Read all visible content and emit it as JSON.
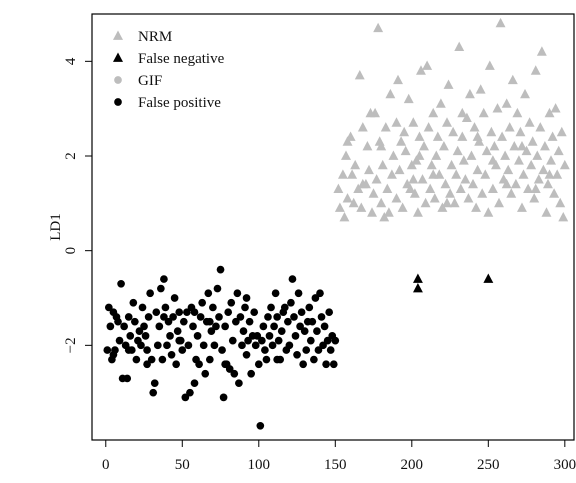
{
  "chart_data": {
    "type": "scatter",
    "xlabel": "",
    "ylabel": "LD1",
    "xlim": [
      -9,
      306
    ],
    "ylim": [
      -4.0,
      5.0
    ],
    "x_ticks": [
      0,
      50,
      100,
      150,
      200,
      250,
      300
    ],
    "x_tick_labels": [
      "0",
      "50",
      "100",
      "150",
      "200",
      "250",
      "300"
    ],
    "y_ticks": [
      4,
      2,
      0,
      -2
    ],
    "y_tick_labels": [
      "4",
      "2",
      "0",
      "−2"
    ],
    "legend_position": "top-left",
    "grid": false,
    "series": [
      {
        "name": "NRM",
        "marker": "triangle",
        "color": "#bdbdbd",
        "points": [
          [
            152,
            1.3
          ],
          [
            153,
            0.9
          ],
          [
            155,
            1.6
          ],
          [
            156,
            0.7
          ],
          [
            157,
            2.0
          ],
          [
            158,
            1.1
          ],
          [
            160,
            2.4
          ],
          [
            161,
            1.6
          ],
          [
            163,
            1.8
          ],
          [
            165,
            1.3
          ],
          [
            166,
            3.7
          ],
          [
            167,
            0.9
          ],
          [
            168,
            2.6
          ],
          [
            170,
            1.4
          ],
          [
            171,
            2.2
          ],
          [
            172,
            1.7
          ],
          [
            174,
            0.8
          ],
          [
            175,
            1.2
          ],
          [
            176,
            2.9
          ],
          [
            177,
            1.5
          ],
          [
            178,
            4.7
          ],
          [
            179,
            2.3
          ],
          [
            180,
            1.0
          ],
          [
            181,
            1.8
          ],
          [
            182,
            0.7
          ],
          [
            183,
            2.6
          ],
          [
            184,
            1.3
          ],
          [
            186,
            3.3
          ],
          [
            187,
            1.6
          ],
          [
            188,
            2.0
          ],
          [
            190,
            1.1
          ],
          [
            191,
            3.6
          ],
          [
            192,
            1.7
          ],
          [
            193,
            2.3
          ],
          [
            194,
            0.9
          ],
          [
            196,
            2.1
          ],
          [
            197,
            1.4
          ],
          [
            198,
            3.2
          ],
          [
            200,
            1.8
          ],
          [
            201,
            2.7
          ],
          [
            202,
            1.2
          ],
          [
            203,
            1.9
          ],
          [
            204,
            0.8
          ],
          [
            205,
            2.4
          ],
          [
            206,
            3.8
          ],
          [
            207,
            1.5
          ],
          [
            208,
            2.2
          ],
          [
            209,
            1.0
          ],
          [
            210,
            3.9
          ],
          [
            211,
            2.6
          ],
          [
            212,
            1.3
          ],
          [
            213,
            1.8
          ],
          [
            214,
            2.9
          ],
          [
            215,
            1.1
          ],
          [
            216,
            2.0
          ],
          [
            217,
            2.4
          ],
          [
            218,
            1.6
          ],
          [
            219,
            3.1
          ],
          [
            220,
            0.9
          ],
          [
            221,
            2.2
          ],
          [
            222,
            1.4
          ],
          [
            223,
            2.7
          ],
          [
            224,
            3.5
          ],
          [
            225,
            1.2
          ],
          [
            226,
            1.8
          ],
          [
            227,
            2.5
          ],
          [
            228,
            1.0
          ],
          [
            229,
            1.6
          ],
          [
            230,
            2.1
          ],
          [
            231,
            4.3
          ],
          [
            232,
            1.3
          ],
          [
            233,
            2.4
          ],
          [
            234,
            1.9
          ],
          [
            235,
            1.5
          ],
          [
            236,
            2.8
          ],
          [
            237,
            1.1
          ],
          [
            238,
            3.3
          ],
          [
            239,
            2.0
          ],
          [
            240,
            1.4
          ],
          [
            241,
            2.6
          ],
          [
            242,
            0.9
          ],
          [
            243,
            1.7
          ],
          [
            244,
            2.3
          ],
          [
            245,
            3.4
          ],
          [
            246,
            1.2
          ],
          [
            247,
            2.9
          ],
          [
            248,
            1.6
          ],
          [
            249,
            2.1
          ],
          [
            250,
            0.8
          ],
          [
            251,
            3.9
          ],
          [
            252,
            2.5
          ],
          [
            253,
            1.3
          ],
          [
            254,
            2.2
          ],
          [
            255,
            1.8
          ],
          [
            256,
            3.0
          ],
          [
            257,
            1.0
          ],
          [
            258,
            4.8
          ],
          [
            259,
            2.4
          ],
          [
            260,
            1.5
          ],
          [
            261,
            2.0
          ],
          [
            262,
            3.1
          ],
          [
            263,
            1.7
          ],
          [
            264,
            2.6
          ],
          [
            265,
            1.2
          ],
          [
            266,
            3.6
          ],
          [
            267,
            2.2
          ],
          [
            268,
            1.4
          ],
          [
            269,
            2.9
          ],
          [
            270,
            1.9
          ],
          [
            271,
            2.5
          ],
          [
            272,
            0.9
          ],
          [
            273,
            1.6
          ],
          [
            274,
            3.3
          ],
          [
            275,
            2.1
          ],
          [
            276,
            1.3
          ],
          [
            277,
            2.7
          ],
          [
            278,
            1.8
          ],
          [
            279,
            2.3
          ],
          [
            280,
            1.1
          ],
          [
            281,
            3.8
          ],
          [
            282,
            2.0
          ],
          [
            283,
            1.5
          ],
          [
            284,
            2.6
          ],
          [
            285,
            4.2
          ],
          [
            286,
            1.7
          ],
          [
            287,
            2.2
          ],
          [
            288,
            0.8
          ],
          [
            289,
            1.4
          ],
          [
            290,
            2.9
          ],
          [
            291,
            1.9
          ],
          [
            292,
            2.4
          ],
          [
            293,
            1.2
          ],
          [
            294,
            3.0
          ],
          [
            295,
            1.6
          ],
          [
            296,
            2.1
          ],
          [
            297,
            1.0
          ],
          [
            298,
            2.5
          ],
          [
            299,
            0.7
          ],
          [
            300,
            1.8
          ],
          [
            162,
            1.0
          ],
          [
            173,
            2.9
          ],
          [
            185,
            0.8
          ],
          [
            195,
            2.5
          ],
          [
            199,
            1.3
          ],
          [
            205,
            2.0
          ],
          [
            214,
            1.6
          ],
          [
            223,
            1.0
          ],
          [
            233,
            2.9
          ],
          [
            243,
            2.4
          ],
          [
            253,
            1.9
          ],
          [
            262,
            1.4
          ],
          [
            272,
            2.2
          ],
          [
            281,
            1.3
          ],
          [
            290,
            1.6
          ],
          [
            158,
            2.3
          ],
          [
            168,
            1.4
          ],
          [
            180,
            2.2
          ],
          [
            190,
            2.7
          ],
          [
            201,
            1.5
          ]
        ]
      },
      {
        "name": "False negative",
        "marker": "triangle",
        "color": "#000000",
        "points": [
          [
            204,
            -0.6
          ],
          [
            204,
            -0.8
          ],
          [
            250,
            -0.6
          ]
        ]
      },
      {
        "name": "GIF",
        "marker": "circle",
        "color": "#bdbdbd",
        "points": []
      },
      {
        "name": "False positive",
        "marker": "circle",
        "color": "#000000",
        "points": [
          [
            1,
            -2.1
          ],
          [
            2,
            -1.2
          ],
          [
            3,
            -1.6
          ],
          [
            4,
            -2.3
          ],
          [
            5,
            -1.3
          ],
          [
            6,
            -2.1
          ],
          [
            7,
            -1.4
          ],
          [
            8,
            -1.5
          ],
          [
            9,
            -1.9
          ],
          [
            10,
            -0.7
          ],
          [
            11,
            -2.7
          ],
          [
            12,
            -1.6
          ],
          [
            13,
            -2.0
          ],
          [
            14,
            -2.7
          ],
          [
            15,
            -1.4
          ],
          [
            16,
            -1.8
          ],
          [
            17,
            -2.1
          ],
          [
            18,
            -1.1
          ],
          [
            19,
            -1.5
          ],
          [
            20,
            -2.3
          ],
          [
            21,
            -1.9
          ],
          [
            22,
            -1.7
          ],
          [
            23,
            -2.0
          ],
          [
            24,
            -1.2
          ],
          [
            25,
            -1.6
          ],
          [
            26,
            -1.8
          ],
          [
            27,
            -2.1
          ],
          [
            28,
            -1.4
          ],
          [
            29,
            -0.9
          ],
          [
            30,
            -2.3
          ],
          [
            31,
            -3.0
          ],
          [
            32,
            -2.8
          ],
          [
            33,
            -1.3
          ],
          [
            34,
            -2.0
          ],
          [
            35,
            -1.6
          ],
          [
            36,
            -0.8
          ],
          [
            37,
            -2.3
          ],
          [
            38,
            -0.6
          ],
          [
            39,
            -1.2
          ],
          [
            40,
            -2.0
          ],
          [
            41,
            -1.5
          ],
          [
            42,
            -1.8
          ],
          [
            43,
            -2.2
          ],
          [
            44,
            -1.4
          ],
          [
            45,
            -1.0
          ],
          [
            46,
            -2.4
          ],
          [
            47,
            -1.7
          ],
          [
            48,
            -1.3
          ],
          [
            49,
            -1.9
          ],
          [
            50,
            -2.1
          ],
          [
            51,
            -1.5
          ],
          [
            52,
            -3.1
          ],
          [
            53,
            -1.3
          ],
          [
            54,
            -2.0
          ],
          [
            55,
            -3.0
          ],
          [
            56,
            -1.2
          ],
          [
            57,
            -1.6
          ],
          [
            58,
            -2.8
          ],
          [
            59,
            -2.3
          ],
          [
            60,
            -1.8
          ],
          [
            61,
            -2.4
          ],
          [
            62,
            -1.4
          ],
          [
            63,
            -1.1
          ],
          [
            64,
            -2.0
          ],
          [
            65,
            -2.6
          ],
          [
            66,
            -1.5
          ],
          [
            67,
            -0.9
          ],
          [
            68,
            -2.3
          ],
          [
            69,
            -1.7
          ],
          [
            70,
            -1.2
          ],
          [
            71,
            -2.0
          ],
          [
            72,
            -1.6
          ],
          [
            73,
            -0.8
          ],
          [
            74,
            -1.4
          ],
          [
            75,
            -0.4
          ],
          [
            76,
            -2.1
          ],
          [
            77,
            -3.1
          ],
          [
            78,
            -1.6
          ],
          [
            79,
            -2.4
          ],
          [
            80,
            -1.3
          ],
          [
            81,
            -2.5
          ],
          [
            82,
            -1.1
          ],
          [
            83,
            -1.9
          ],
          [
            84,
            -2.6
          ],
          [
            85,
            -1.5
          ],
          [
            86,
            -0.9
          ],
          [
            87,
            -2.8
          ],
          [
            88,
            -1.4
          ],
          [
            89,
            -2.0
          ],
          [
            90,
            -1.7
          ],
          [
            91,
            -1.2
          ],
          [
            92,
            -2.2
          ],
          [
            93,
            -1.9
          ],
          [
            94,
            -1.5
          ],
          [
            95,
            -2.6
          ],
          [
            96,
            -1.8
          ],
          [
            97,
            -1.3
          ],
          [
            98,
            -2.0
          ],
          [
            99,
            -1.8
          ],
          [
            100,
            -2.4
          ],
          [
            101,
            -3.7
          ],
          [
            102,
            -1.9
          ],
          [
            103,
            -1.6
          ],
          [
            104,
            -2.1
          ],
          [
            105,
            -2.3
          ],
          [
            106,
            -1.4
          ],
          [
            107,
            -1.8
          ],
          [
            108,
            -1.2
          ],
          [
            109,
            -2.0
          ],
          [
            110,
            -1.6
          ],
          [
            111,
            -0.9
          ],
          [
            112,
            -1.4
          ],
          [
            113,
            -1.9
          ],
          [
            114,
            -2.3
          ],
          [
            115,
            -1.7
          ],
          [
            116,
            -1.3
          ],
          [
            117,
            -1.2
          ],
          [
            118,
            -2.1
          ],
          [
            119,
            -1.5
          ],
          [
            120,
            -2.0
          ],
          [
            121,
            -1.1
          ],
          [
            122,
            -0.6
          ],
          [
            123,
            -1.4
          ],
          [
            124,
            -1.8
          ],
          [
            125,
            -2.2
          ],
          [
            126,
            -0.9
          ],
          [
            127,
            -1.6
          ],
          [
            128,
            -1.3
          ],
          [
            129,
            -2.4
          ],
          [
            130,
            -1.7
          ],
          [
            131,
            -2.1
          ],
          [
            132,
            -1.5
          ],
          [
            133,
            -1.2
          ],
          [
            134,
            -1.9
          ],
          [
            135,
            -1.5
          ],
          [
            136,
            -2.3
          ],
          [
            137,
            -1.0
          ],
          [
            138,
            -1.7
          ],
          [
            139,
            -2.1
          ],
          [
            140,
            -0.9
          ],
          [
            141,
            -1.4
          ],
          [
            142,
            -2.0
          ],
          [
            143,
            -1.6
          ],
          [
            144,
            -2.4
          ],
          [
            145,
            -1.9
          ],
          [
            146,
            -1.3
          ],
          [
            147,
            -2.1
          ],
          [
            148,
            -1.8
          ],
          [
            149,
            -2.4
          ],
          [
            150,
            -1.9
          ],
          [
            5,
            -2.2
          ],
          [
            15,
            -2.1
          ],
          [
            27,
            -2.4
          ],
          [
            38,
            -1.4
          ],
          [
            48,
            -1.9
          ],
          [
            58,
            -1.3
          ],
          [
            68,
            -1.5
          ],
          [
            78,
            -2.4
          ],
          [
            92,
            -1.0
          ],
          [
            112,
            -2.3
          ]
        ]
      }
    ]
  }
}
